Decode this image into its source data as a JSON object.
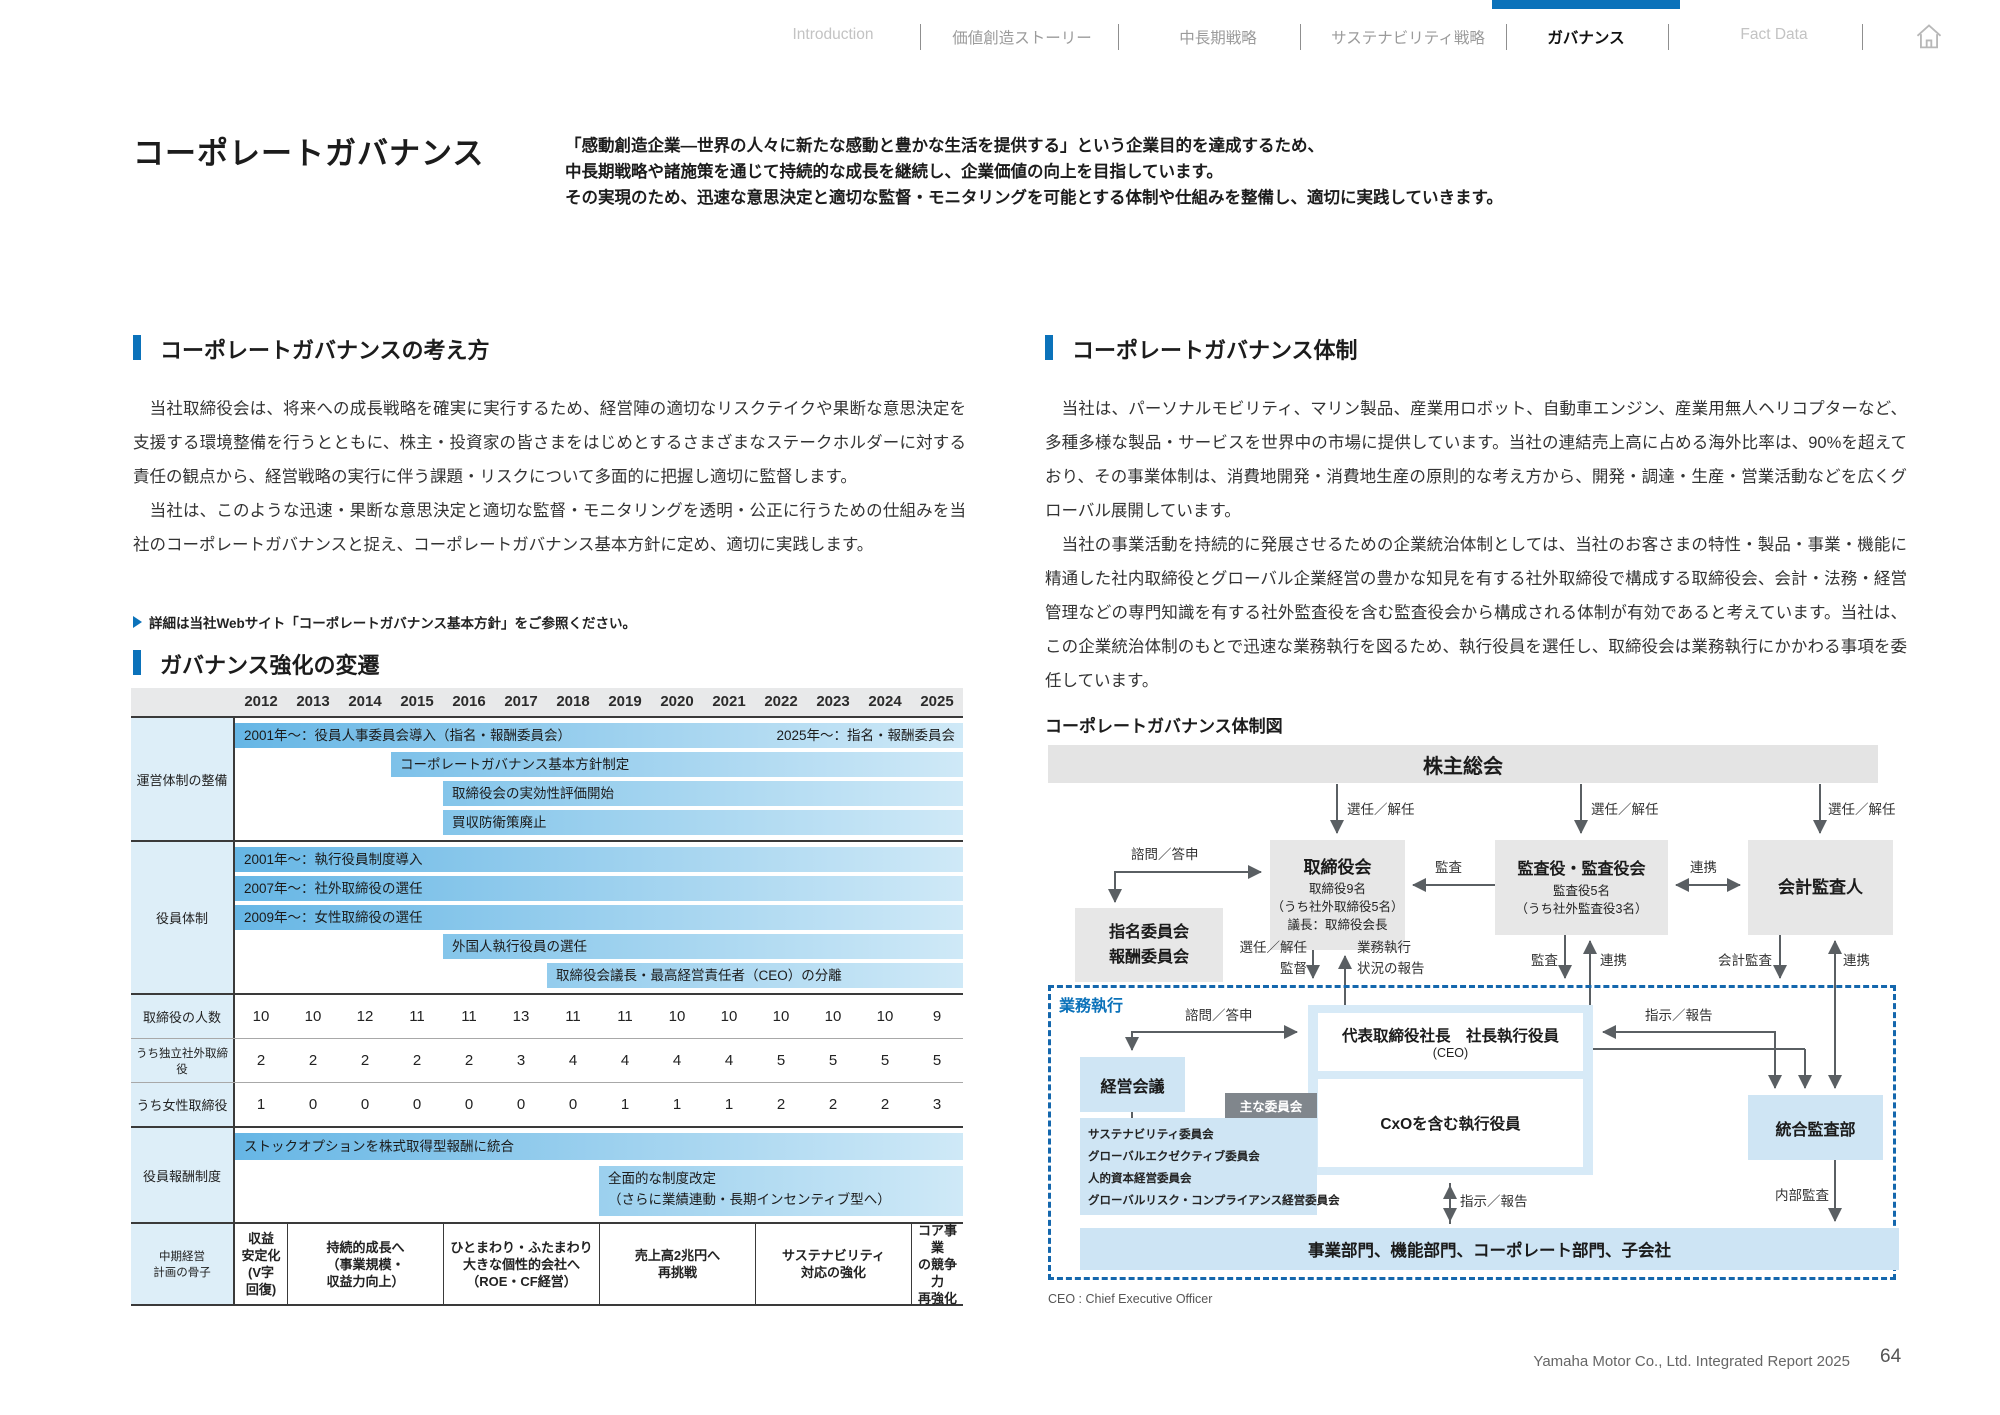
{
  "nav": {
    "tabs": [
      "Introduction",
      "価値創造ストーリー",
      "中長期戦略",
      "サステナビリティ戦略",
      "ガバナンス",
      "Fact Data"
    ],
    "active_tab": "ガバナンス"
  },
  "header": {
    "title": "コーポレートガバナンス",
    "intro_lines": [
      "「感動創造企業―世界の人々に新たな感動と豊かな生活を提供する」という企業目的を達成するため、",
      "中長期戦略や諸施策を通じて持続的な成長を継続し、企業価値の向上を目指しています。",
      "その実現のため、迅速な意思決定と適切な監督・モニタリングを可能とする体制や仕組みを整備し、適切に実践していきます。"
    ]
  },
  "philosophy": {
    "title": "コーポレートガバナンスの考え方",
    "paragraphs": [
      "　当社取締役会は、将来への成長戦略を確実に実行するため、経営陣の適切なリスクテイクや果断な意思決定を支援する環境整備を行うとともに、株主・投資家の皆さまをはじめとするさまざまなステークホルダーに対する責任の観点から、経営戦略の実行に伴う課題・リスクについて多面的に把握し適切に監督します。",
      "　当社は、このような迅速・果断な意思決定と適切な監督・モニタリングを透明・公正に行うための仕組みを当社のコーポレートガバナンスと捉え、コーポレートガバナンス基本方針に定め、適切に実践します。"
    ],
    "link": "詳細は当社Webサイト「コーポレートガバナンス基本方針」をご参照ください。"
  },
  "structure": {
    "title": "コーポレートガバナンス体制",
    "paragraphs": [
      "　当社は、パーソナルモビリティ、マリン製品、産業用ロボット、自動車エンジン、産業用無人ヘリコプターなど、多種多様な製品・サービスを世界中の市場に提供しています。当社の連結売上高に占める海外比率は、90%を超えており、その事業体制は、消費地開発・消費地生産の原則的な考え方から、開発・調達・生産・営業活動などを広くグローバル展開しています。",
      "　当社の事業活動を持続的に発展させるための企業統治体制としては、当社のお客さまの特性・製品・事業・機能に精通した社内取締役とグローバル企業経営の豊かな知見を有する社外取締役で構成する取締役会、会計・法務・経営管理などの専門知識を有する社外監査役を含む監査役会から構成される体制が有効であると考えています。当社は、この企業統治体制のもとで迅速な業務執行を図るため、執行役員を選任し、取締役会は業務執行にかかわる事項を委任しています。"
    ],
    "diagram_title": "コーポレートガバナンス体制図"
  },
  "chart_data": {
    "type": "table",
    "title": "ガバナンス強化の変遷",
    "years": [
      2012,
      2013,
      2014,
      2015,
      2016,
      2017,
      2018,
      2019,
      2020,
      2021,
      2022,
      2023,
      2024,
      2025
    ],
    "bar_groups": [
      {
        "label": "運営体制の整備",
        "bars": [
          {
            "text": "2001年〜：役員人事委員会導入（指名・報酬委員会）",
            "right_text": "2025年〜：指名・報酬委員会",
            "start": 2012,
            "end": 2025
          },
          {
            "text": "コーポレートガバナンス基本方針制定",
            "start": 2015,
            "end": 2025
          },
          {
            "text": "取締役会の実効性評価開始",
            "start": 2016,
            "end": 2025
          },
          {
            "text": "買収防衛策廃止",
            "start": 2016,
            "end": 2025
          }
        ]
      },
      {
        "label": "役員体制",
        "bars": [
          {
            "text": "2001年〜：執行役員制度導入",
            "start": 2012,
            "end": 2025
          },
          {
            "text": "2007年〜：社外取締役の選任",
            "start": 2012,
            "end": 2025
          },
          {
            "text": "2009年〜：女性取締役の選任",
            "start": 2012,
            "end": 2025
          },
          {
            "text": "外国人執行役員の選任",
            "start": 2016,
            "end": 2025
          },
          {
            "text": "取締役会議長・最高経営責任者（CEO）の分離",
            "start": 2018,
            "end": 2025
          }
        ]
      }
    ],
    "number_rows": [
      {
        "label": "取締役の人数",
        "values": [
          10,
          10,
          12,
          11,
          11,
          13,
          11,
          11,
          10,
          10,
          10,
          10,
          10,
          9
        ]
      },
      {
        "label": "うち独立社外取締役",
        "values": [
          2,
          2,
          2,
          2,
          2,
          3,
          4,
          4,
          4,
          4,
          5,
          5,
          5,
          5
        ]
      },
      {
        "label": "うち女性取締役",
        "values": [
          1,
          0,
          0,
          0,
          0,
          0,
          0,
          1,
          1,
          1,
          2,
          2,
          2,
          3
        ]
      }
    ],
    "compensation": {
      "label": "役員報酬制度",
      "bars": [
        {
          "text": "ストックオプションを株式取得型報酬に統合",
          "start": 2012,
          "end": 2025
        },
        {
          "text": "全面的な制度改定\n（さらに業績連動・長期インセンティブ型へ）",
          "start": 2019,
          "end": 2025,
          "two_line": true
        }
      ]
    },
    "midterm": {
      "label": "中期経営\n計画の骨子",
      "cells": [
        {
          "text": "収益\n安定化\n(V字\n回復)",
          "start": 2012,
          "end": 2012
        },
        {
          "text": "持続的成長へ\n（事業規模・\n収益力向上）",
          "start": 2013,
          "end": 2015
        },
        {
          "text": "ひとまわり・ふたまわり\n大きな個性的会社へ\n（ROE・CF経営）",
          "start": 2016,
          "end": 2018
        },
        {
          "text": "売上高2兆円へ\n再挑戦",
          "start": 2019,
          "end": 2021
        },
        {
          "text": "サステナビリティ\n対応の強化",
          "start": 2022,
          "end": 2024
        },
        {
          "text": "コア事業\nの競争力\n再強化",
          "start": 2025,
          "end": 2025
        }
      ]
    }
  },
  "diagram": {
    "shareholders": "株主総会",
    "board": {
      "title": "取締役会",
      "lines": [
        "取締役9名",
        "（うち社外取締役5名）",
        "議長：取締役会長"
      ]
    },
    "auditors": {
      "title": "監査役・監査役会",
      "lines": [
        "監査役5名",
        "（うち社外監査役3名）"
      ]
    },
    "accounting_auditor": "会計監査人",
    "nomination": "指名委員会\n報酬委員会",
    "management_council": "経営会議",
    "president": {
      "title": "代表取締役社長　社長執行役員",
      "sub": "(CEO)"
    },
    "cxo": "CxOを含む執行役員",
    "integrated_audit": "統合監査部",
    "committees_label": "主な委員会",
    "committees": [
      "サステナビリティ委員会",
      "グローバルエクゼクティブ委員会",
      "人的資本経営委員会",
      "グローバルリスク・コンプライアンス経営委員会"
    ],
    "divisions": "事業部門、機能部門、コーポレート部門、子会社",
    "execution_label": "業務執行",
    "labels": {
      "elect": "選任／解任",
      "consult": "諮問／答申",
      "audit": "監査",
      "coop": "連携",
      "elect_supervise": "選任／解任\n監督",
      "exec_report": "業務執行\n状況の報告",
      "acc_audit": "会計監査",
      "direct": "指示／報告",
      "internal": "内部監査"
    },
    "footnote": "CEO : Chief Executive Officer"
  },
  "footer": {
    "report": "Yamaha Motor Co., Ltd. Integrated Report 2025",
    "page": "64"
  }
}
